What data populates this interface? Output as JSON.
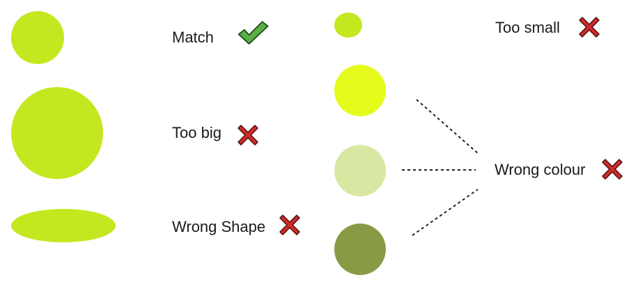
{
  "colors": {
    "reference": "#c3e81f",
    "bright": "#e5fb1c",
    "pale": "#d8e8a2",
    "dark": "#889a44",
    "check_fill": "#5cae46",
    "check_stroke": "#1e4d17",
    "cross_fill": "#d02b2b",
    "cross_stroke": "#4d0e0e",
    "connector": "#222222"
  },
  "icons": {
    "check": "checkmark-icon",
    "cross": "cross-icon"
  },
  "items": [
    {
      "id": "match",
      "label": "Match",
      "verdict": "check"
    },
    {
      "id": "too-big",
      "label": "Too big",
      "verdict": "cross"
    },
    {
      "id": "wrong-shape",
      "label": "Wrong Shape",
      "verdict": "cross"
    },
    {
      "id": "too-small",
      "label": "Too small",
      "verdict": "cross"
    },
    {
      "id": "wrong-colour",
      "label": "Wrong colour",
      "verdict": "cross"
    }
  ]
}
